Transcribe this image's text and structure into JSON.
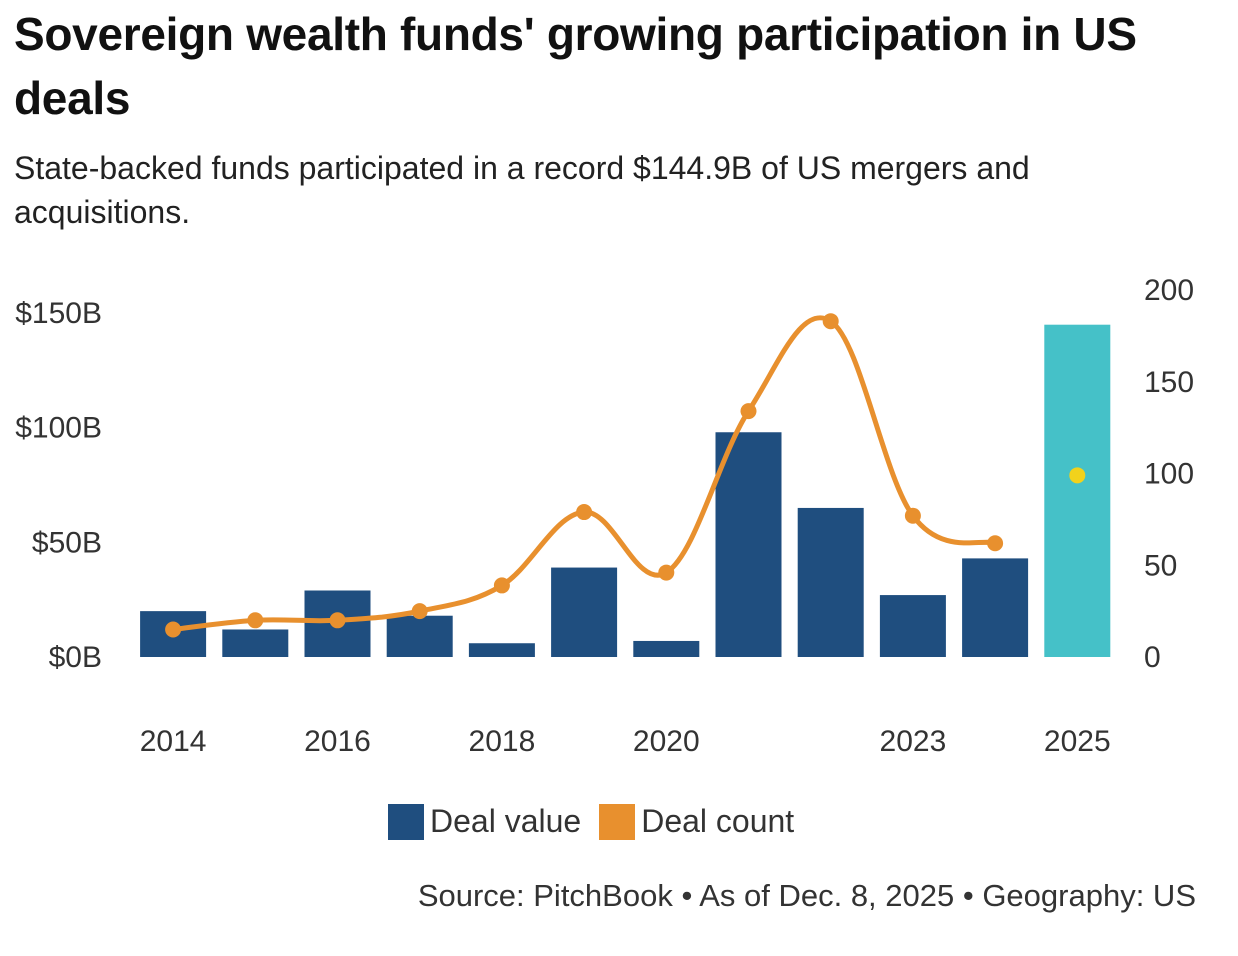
{
  "title": "Sovereign wealth funds' growing participation in US deals",
  "subtitle": "State-backed funds participated in a record $144.9B of US mergers and acquisitions.",
  "source": "Source: PitchBook • As of Dec. 8, 2025 • Geography: US",
  "colors": {
    "deal_value": "#1f4e7f",
    "deal_value_latest": "#45c1c8",
    "deal_count": "#e8902e",
    "deal_count_latest": "#f2d21c"
  },
  "chart_data": {
    "type": "bar",
    "categories": [
      "2014",
      "2015",
      "2016",
      "2017",
      "2018",
      "2019",
      "2020",
      "2021",
      "2022",
      "2023",
      "2024",
      "2025"
    ],
    "x_tick_labels": [
      "2014",
      "",
      "2016",
      "",
      "2018",
      "",
      "2020",
      "",
      "",
      "2023",
      "",
      "2025"
    ],
    "series": [
      {
        "name": "Deal value",
        "type": "bar",
        "axis": "left",
        "values": [
          20,
          12,
          29,
          18,
          6,
          39,
          7,
          98,
          65,
          27,
          43,
          144.9
        ]
      },
      {
        "name": "Deal count",
        "type": "line",
        "axis": "right",
        "values": [
          15,
          20,
          20,
          25,
          39,
          79,
          46,
          134,
          183,
          77,
          62,
          99
        ]
      }
    ],
    "y_left": {
      "ylim": [
        0,
        150
      ],
      "ticks": [
        0,
        50,
        100,
        150
      ],
      "tick_labels": [
        "$0B",
        "$50B",
        "$100B",
        "$150B"
      ]
    },
    "y_right": {
      "ylim": [
        0,
        200
      ],
      "ticks": [
        0,
        50,
        100,
        150,
        200
      ],
      "tick_labels": [
        "0",
        "50",
        "100",
        "150",
        "200"
      ]
    },
    "legend": {
      "position": "bottom",
      "entries": [
        "Deal value",
        "Deal count"
      ]
    },
    "grid": false
  }
}
